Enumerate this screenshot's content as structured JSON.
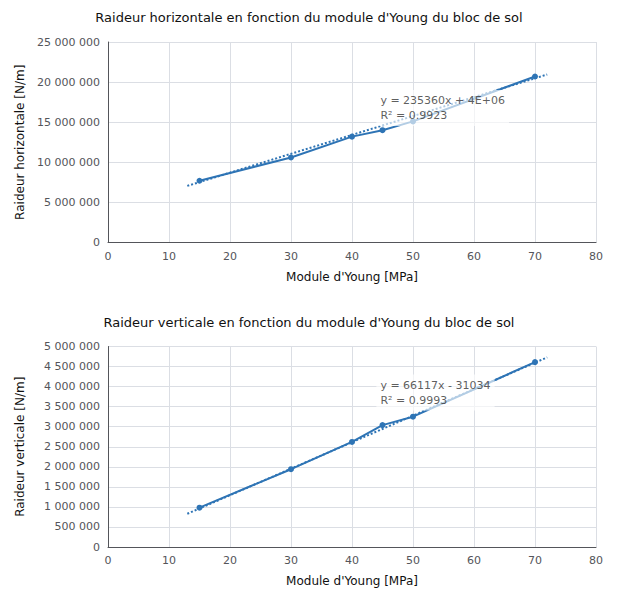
{
  "chart_data": [
    {
      "type": "line",
      "title": "Raideur horizontale en fonction du module d'Young du bloc de sol",
      "xlabel": "Module d'Young [MPa]",
      "ylabel": "Raideur horizontale [N/m]",
      "series": [
        {
          "type": "line",
          "x": [
            15,
            30,
            40,
            45,
            50,
            70
          ],
          "values": [
            7700000,
            10600000,
            13200000,
            14000000,
            15100000,
            20700000
          ],
          "color": "#2E74B5",
          "marker": "circle",
          "line_style": "solid"
        },
        {
          "type": "line",
          "x": [
            13,
            72
          ],
          "values": [
            7059680,
            20945920
          ],
          "color": "#2E74B5",
          "line_style": "dotted"
        }
      ],
      "annotations": [
        {
          "text": "y = 235360x + 4E+06\nR² = 0.9923",
          "x": 44,
          "y": 19000000
        }
      ],
      "xlim": [
        0,
        80
      ],
      "xticks": [
        0,
        10,
        20,
        30,
        40,
        50,
        60,
        70,
        80
      ],
      "ylim": [
        0,
        25000000
      ],
      "yticks": [
        0,
        {
          "value": 5000000,
          "label": "5 000 000"
        },
        {
          "value": 10000000,
          "label": "10 000 000"
        },
        {
          "value": 15000000,
          "label": "15 000 000"
        },
        {
          "value": 20000000,
          "label": "20 000 000"
        },
        {
          "value": 25000000,
          "label": "25 000 000"
        }
      ],
      "grid": true
    },
    {
      "type": "line",
      "title": "Raideur verticale en fonction du module d'Young du bloc de sol",
      "xlabel": "Module d'Young [MPa]",
      "ylabel": "Raideur verticale [N/m]",
      "series": [
        {
          "type": "line",
          "x": [
            15,
            30,
            40,
            45,
            50,
            70
          ],
          "values": [
            980000,
            1940000,
            2620000,
            3040000,
            3250000,
            4610000
          ],
          "color": "#2E74B5",
          "marker": "circle",
          "line_style": "solid"
        },
        {
          "type": "line",
          "x": [
            13,
            72
          ],
          "values": [
            828487,
            4729390
          ],
          "color": "#2E74B5",
          "line_style": "dotted"
        }
      ],
      "annotations": [
        {
          "text": "y = 66117x - 31034\nR² = 0.9993",
          "x": 44,
          "y": 4300000
        }
      ],
      "xlim": [
        0,
        80
      ],
      "xticks": [
        0,
        10,
        20,
        30,
        40,
        50,
        60,
        70,
        80
      ],
      "ylim": [
        0,
        5000000
      ],
      "yticks": [
        0,
        {
          "value": 500000,
          "label": "500 000"
        },
        {
          "value": 1000000,
          "label": "1 000 000"
        },
        {
          "value": 1500000,
          "label": "1 500 000"
        },
        {
          "value": 2000000,
          "label": "2 000 000"
        },
        {
          "value": 2500000,
          "label": "2 500 000"
        },
        {
          "value": 3000000,
          "label": "3 000 000"
        },
        {
          "value": 3500000,
          "label": "3 500 000"
        },
        {
          "value": 4000000,
          "label": "4 000 000"
        },
        {
          "value": 4500000,
          "label": "4 500 000"
        },
        {
          "value": 5000000,
          "label": "5 000 000"
        }
      ],
      "grid": true
    }
  ]
}
